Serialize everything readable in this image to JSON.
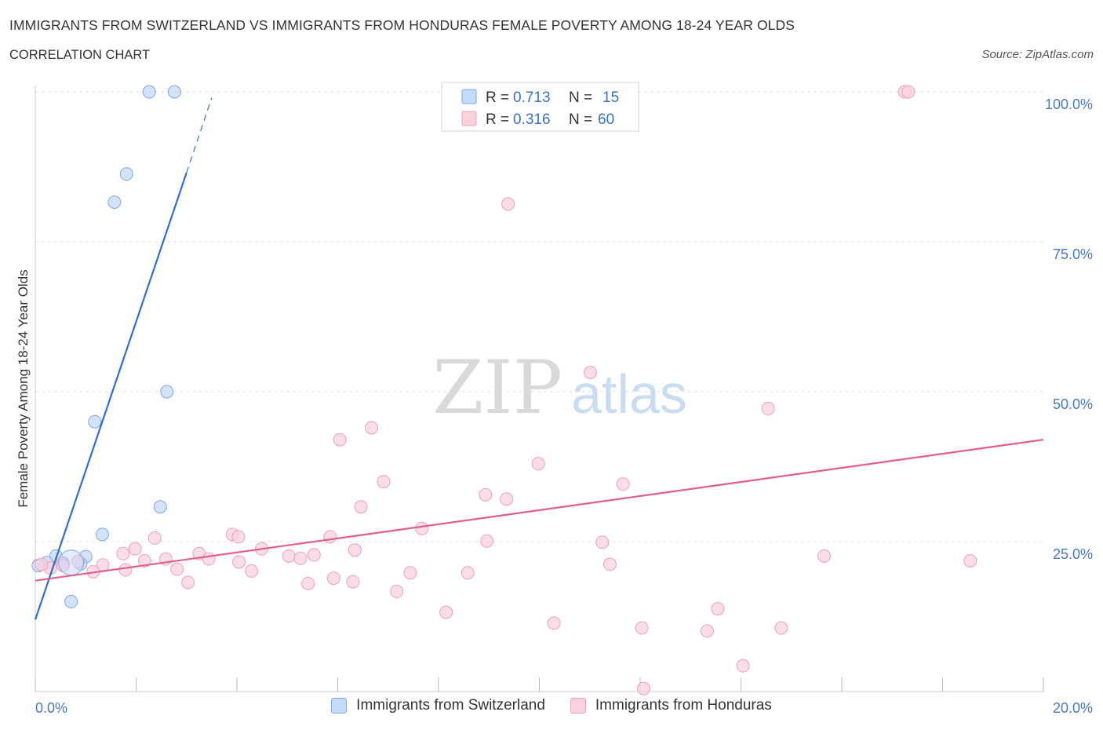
{
  "header": {
    "title": "IMMIGRANTS FROM SWITZERLAND VS IMMIGRANTS FROM HONDURAS FEMALE POVERTY AMONG 18-24 YEAR OLDS",
    "subtitle": "CORRELATION CHART",
    "source": "Source: ZipAtlas.com"
  },
  "watermark": {
    "zip": "ZIP",
    "atlas": "atlas"
  },
  "colors": {
    "blue_fill": "#c6dafa",
    "blue_stroke": "#7ea7e8",
    "blue_line": "#2f6fd0",
    "pink_fill": "#fad2dd",
    "pink_stroke": "#eda0b7",
    "pink_line": "#e0608a",
    "axis_text": "#4a78c4",
    "grid": "#dddddd"
  },
  "stats_legend": [
    {
      "r_label": "R = ",
      "r_value": "0.713",
      "n_label": "N = ",
      "n_value": "15"
    },
    {
      "r_label": "R = ",
      "r_value": "0.316",
      "n_label": "N = ",
      "n_value": "60"
    }
  ],
  "chart_data": {
    "type": "scatter",
    "xlabel": "",
    "ylabel": "Female Poverty Among 18-24 Year Olds",
    "xlim": [
      0,
      20
    ],
    "ylim": [
      0,
      100
    ],
    "x_tick_labels": [
      "0.0%",
      "20.0%"
    ],
    "y_tick_labels": [
      "25.0%",
      "50.0%",
      "75.0%",
      "100.0%"
    ],
    "y_ticks": [
      25,
      50,
      75,
      100
    ],
    "grid": true,
    "series": [
      {
        "name": "Immigrants from Switzerland",
        "color": "#c6dafa",
        "points": [
          [
            2.26,
            100
          ],
          [
            2.76,
            100
          ],
          [
            1.81,
            86.3
          ],
          [
            1.57,
            81.6
          ],
          [
            2.61,
            50.0
          ],
          [
            1.18,
            45.0
          ],
          [
            2.48,
            30.8
          ],
          [
            1.33,
            26.2
          ],
          [
            0.41,
            22.6
          ],
          [
            1.0,
            22.5
          ],
          [
            0.23,
            21.5
          ],
          [
            0.9,
            21.3
          ],
          [
            0.55,
            21.4
          ],
          [
            0.06,
            21.0
          ],
          [
            0.71,
            15.0
          ]
        ],
        "trend": {
          "x": [
            0,
            3.0
          ],
          "y": [
            12.0,
            86.5
          ],
          "dashed_to": [
            3.5,
            99.0
          ]
        }
      },
      {
        "name": "Immigrants from Honduras",
        "color": "#fad2dd",
        "points": [
          [
            17.25,
            100
          ],
          [
            17.32,
            100
          ],
          [
            9.38,
            81.3
          ],
          [
            11.01,
            53.2
          ],
          [
            14.54,
            47.2
          ],
          [
            6.67,
            44.0
          ],
          [
            6.04,
            42.0
          ],
          [
            9.98,
            38.0
          ],
          [
            6.91,
            35.0
          ],
          [
            11.66,
            34.6
          ],
          [
            8.93,
            32.8
          ],
          [
            9.35,
            32.1
          ],
          [
            6.46,
            30.8
          ],
          [
            7.67,
            27.2
          ],
          [
            3.91,
            26.2
          ],
          [
            4.03,
            25.8
          ],
          [
            2.37,
            25.6
          ],
          [
            5.85,
            25.8
          ],
          [
            8.96,
            25.1
          ],
          [
            11.25,
            24.9
          ],
          [
            1.98,
            23.8
          ],
          [
            3.25,
            23.0
          ],
          [
            4.49,
            23.8
          ],
          [
            6.34,
            23.6
          ],
          [
            1.74,
            23.0
          ],
          [
            5.03,
            22.6
          ],
          [
            5.53,
            22.8
          ],
          [
            15.65,
            22.6
          ],
          [
            18.55,
            21.8
          ],
          [
            2.59,
            22.1
          ],
          [
            3.44,
            22.1
          ],
          [
            5.26,
            22.2
          ],
          [
            4.04,
            21.6
          ],
          [
            2.17,
            21.8
          ],
          [
            1.34,
            21.1
          ],
          [
            0.85,
            21.7
          ],
          [
            0.53,
            21.3
          ],
          [
            11.4,
            21.2
          ],
          [
            1.79,
            20.3
          ],
          [
            4.29,
            20.1
          ],
          [
            1.15,
            20.0
          ],
          [
            2.81,
            20.4
          ],
          [
            7.44,
            19.8
          ],
          [
            8.58,
            19.8
          ],
          [
            5.41,
            18.0
          ],
          [
            5.92,
            18.9
          ],
          [
            6.3,
            18.3
          ],
          [
            3.03,
            18.2
          ],
          [
            7.17,
            16.7
          ],
          [
            0.3,
            20.6
          ],
          [
            13.54,
            13.8
          ],
          [
            8.15,
            13.2
          ],
          [
            10.29,
            11.4
          ],
          [
            12.03,
            10.6
          ],
          [
            14.8,
            10.6
          ],
          [
            13.33,
            10.1
          ],
          [
            14.04,
            4.3
          ],
          [
            12.07,
            0.5
          ],
          [
            0.55,
            21.0
          ],
          [
            0.12,
            21.2
          ]
        ],
        "trend": {
          "x": [
            0,
            20
          ],
          "y": [
            18.5,
            42.0
          ]
        }
      }
    ]
  },
  "bottom_legend": [
    {
      "label": "Immigrants from Switzerland"
    },
    {
      "label": "Immigrants from Honduras"
    }
  ]
}
